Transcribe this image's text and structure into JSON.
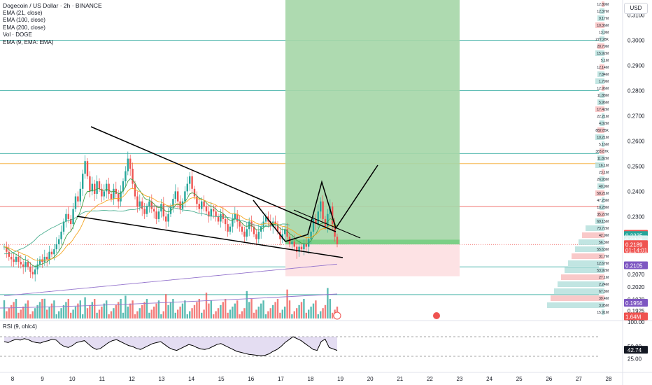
{
  "legend": {
    "title": "Dogecoin / US Dollar · 2h · BINANCE",
    "lines": [
      "EMA (21, close)",
      "EMA (100, close)",
      "EMA (200, close)",
      "Vol · DOGE",
      "EMA (9, EMA: EMA)"
    ]
  },
  "rsi_label": "RSI (9, ohlc4)",
  "currency": "USD",
  "colors": {
    "up": "#26a69a",
    "down": "#ef5350",
    "ema21": "#f5a623",
    "ema100": "#4caf91",
    "ema200": "#9575cd",
    "ema9": "#b2b5be",
    "target_zone": "#a5d6a7",
    "stop_zone": "#fde2e4",
    "rsi_line": "#000000",
    "rsi_fill": "#b39ddb"
  },
  "price_axis": {
    "ticks": [
      "0.3100",
      "0.3000",
      "0.2900",
      "0.2800",
      "0.2700",
      "0.2600",
      "0.2500",
      "0.2400",
      "0.2300",
      "0.2208",
      "0.2100",
      "0.2070",
      "0.2020",
      "0.1970",
      "0.1925"
    ]
  },
  "price_tags": [
    {
      "value": "0.2230",
      "color": "#ef5350"
    },
    {
      "value": "0.2225",
      "color": "#26a69a"
    },
    {
      "value": "0.2208",
      "color": "#e0f2f1"
    },
    {
      "value": "0.2189",
      "sub": "01:14:01",
      "color": "#ef5350"
    },
    {
      "value": "0.2105",
      "color": "#7e57c2"
    },
    {
      "value": "0.1956",
      "color": "#7e57c2"
    },
    {
      "value": "1.64M",
      "color": "#ef5350"
    }
  ],
  "rsi_axis": {
    "ticks": [
      "100.00",
      "50.00",
      "25.00"
    ],
    "current": "42.74"
  },
  "time_axis": [
    "8",
    "9",
    "10",
    "11",
    "12",
    "13",
    "14",
    "15",
    "16",
    "17",
    "18",
    "19",
    "20",
    "21",
    "22",
    "23",
    "24",
    "25",
    "26",
    "27",
    "28"
  ],
  "volume_profile_labels": [
    "12.89M",
    "12.37M",
    "9.17M",
    "10.36M",
    "13.9M",
    "272.28K",
    "20.79M",
    "15.92M",
    "5.1M",
    "12.14M",
    "7.84M",
    "1.79M",
    "12.96M",
    "11.88M",
    "5.96M",
    "17.42M",
    "22.21M",
    "4.02M",
    "882.85K",
    "10.21M",
    "5.16M",
    "383.87K",
    "11.82M",
    "16.1M",
    "23.1M",
    "26.93M",
    "40.9M",
    "58.21M",
    "47.23M",
    "18.28M",
    "35.22M",
    "69.15M",
    "73.72M",
    "42.9M",
    "56.3M",
    "55.63M",
    "31.7M",
    "12.67M",
    "53.92M",
    "27.1M",
    "2.24M",
    "67.8M",
    "39.4M",
    "3.95M",
    "15.91M"
  ],
  "chart_data": {
    "type": "candlestick",
    "symbol": "Dogecoin / US Dollar",
    "interval": "2h",
    "exchange": "BINANCE",
    "ylim": [
      0.1895,
      0.316
    ],
    "rsi_ylim": [
      0,
      100
    ],
    "x_day_labels": [
      "8",
      "9",
      "10",
      "11",
      "12",
      "13",
      "14",
      "15",
      "16",
      "17",
      "18",
      "19",
      "20",
      "21",
      "22",
      "23",
      "24",
      "25",
      "26",
      "27",
      "28"
    ],
    "candles_path_key": [
      0.218,
      0.216,
      0.214,
      0.213,
      0.212,
      0.214,
      0.212,
      0.211,
      0.21,
      0.212,
      0.21,
      0.208,
      0.207,
      0.209,
      0.211,
      0.213,
      0.212,
      0.214,
      0.213,
      0.216,
      0.215,
      0.217,
      0.219,
      0.221,
      0.224,
      0.228,
      0.231,
      0.229,
      0.227,
      0.233,
      0.238,
      0.236,
      0.241,
      0.247,
      0.252,
      0.246,
      0.24,
      0.243,
      0.239,
      0.244,
      0.241,
      0.238,
      0.24,
      0.243,
      0.239,
      0.237,
      0.241,
      0.239,
      0.236,
      0.24,
      0.244,
      0.248,
      0.253,
      0.249,
      0.243,
      0.238,
      0.234,
      0.236,
      0.233,
      0.231,
      0.234,
      0.236,
      0.233,
      0.232,
      0.229,
      0.232,
      0.235,
      0.23,
      0.228,
      0.231,
      0.234,
      0.237,
      0.24,
      0.236,
      0.233,
      0.236,
      0.24,
      0.243,
      0.246,
      0.241,
      0.238,
      0.235,
      0.233,
      0.236,
      0.234,
      0.232,
      0.23,
      0.233,
      0.232,
      0.23,
      0.228,
      0.231,
      0.229,
      0.227,
      0.224,
      0.226,
      0.229,
      0.231,
      0.228,
      0.226,
      0.224,
      0.222,
      0.225,
      0.228,
      0.226,
      0.223,
      0.221,
      0.224,
      0.226,
      0.228,
      0.23,
      0.228,
      0.226,
      0.228,
      0.227,
      0.224,
      0.221,
      0.223,
      0.225,
      0.222,
      0.219,
      0.22,
      0.218,
      0.216,
      0.218,
      0.217,
      0.219,
      0.218,
      0.221,
      0.224,
      0.229,
      0.227,
      0.232,
      0.236,
      0.229,
      0.226,
      0.231,
      0.234,
      0.227,
      0.222,
      0.219
    ]
  },
  "rsi_data": [
    60,
    58,
    62,
    65,
    63,
    66,
    64,
    60,
    58,
    57,
    60,
    62,
    65,
    63,
    55,
    50,
    48,
    52,
    58,
    60,
    62,
    55,
    48,
    44,
    46,
    52,
    58,
    62,
    64,
    60,
    56,
    52,
    50,
    46,
    44,
    48,
    52,
    56,
    58,
    60,
    54,
    48,
    44,
    42,
    46,
    50,
    54,
    52,
    48,
    45,
    44,
    46,
    50,
    54,
    56,
    52,
    48,
    44,
    40,
    38,
    36,
    34,
    33,
    32,
    31,
    32,
    35,
    40,
    44,
    50,
    58,
    64,
    70,
    66,
    62,
    56,
    50,
    44,
    42,
    60,
    65,
    48,
    45,
    42
  ]
}
